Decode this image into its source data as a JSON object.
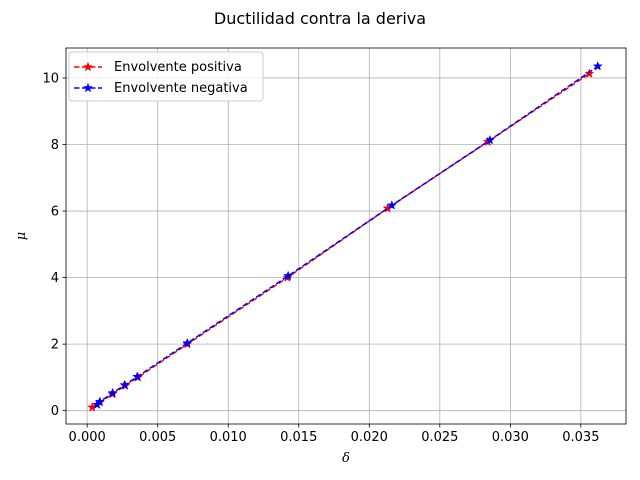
{
  "chart_data": {
    "type": "line",
    "title": "Ductilidad contra la deriva",
    "xlabel": "δ",
    "ylabel": "μ",
    "xlim": [
      -0.0015,
      0.0382
    ],
    "ylim": [
      -0.4,
      10.9
    ],
    "xticks": [
      0.0,
      0.005,
      0.01,
      0.015,
      0.02,
      0.025,
      0.03,
      0.035
    ],
    "xtick_labels": [
      "0.000",
      "0.005",
      "0.010",
      "0.015",
      "0.020",
      "0.025",
      "0.030",
      "0.035"
    ],
    "yticks": [
      0,
      2,
      4,
      6,
      8,
      10
    ],
    "ytick_labels": [
      "0",
      "2",
      "4",
      "6",
      "8",
      "10"
    ],
    "grid": true,
    "legend_position": "top-left",
    "series": [
      {
        "name": "Envolvente positiva",
        "color": "#ff0000",
        "linestyle": "dashed",
        "marker": "star",
        "x": [
          0.00036,
          0.0009,
          0.0018,
          0.0027,
          0.0036,
          0.0071,
          0.0142,
          0.0213,
          0.0284,
          0.0356
        ],
        "y": [
          0.1,
          0.25,
          0.5,
          0.75,
          1.0,
          2.0,
          4.0,
          6.08,
          8.08,
          10.13
        ]
      },
      {
        "name": "Envolvente negativa",
        "color": "#0000ff",
        "linestyle": "dashed",
        "marker": "star",
        "x": [
          0.00071,
          0.0009,
          0.0018,
          0.00265,
          0.00355,
          0.0071,
          0.01425,
          0.0216,
          0.02855,
          0.0362
        ],
        "y": [
          0.18,
          0.27,
          0.53,
          0.77,
          1.02,
          2.03,
          4.05,
          6.17,
          8.13,
          10.35
        ]
      }
    ]
  }
}
